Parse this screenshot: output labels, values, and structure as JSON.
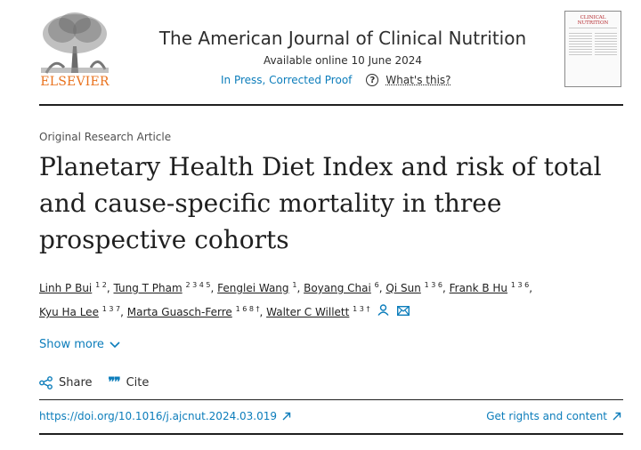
{
  "header": {
    "publisher": "ELSEVIER",
    "journal_title": "The American Journal of Clinical Nutrition",
    "available_online": "Available online 10 June 2024",
    "in_press": "In Press, Corrected Proof",
    "whats_this": "What's this?",
    "cover_title": "CLINICAL NUTRITION"
  },
  "article": {
    "type": "Original Research Article",
    "title": "Planetary Health Diet Index and risk of total and cause-specific mortality in three prospective cohorts"
  },
  "authors": [
    {
      "name": "Linh P Bui",
      "sup": "1 2"
    },
    {
      "name": "Tung T Pham",
      "sup": "2 3 4 5"
    },
    {
      "name": "Fenglei Wang",
      "sup": "1"
    },
    {
      "name": "Boyang Chai",
      "sup": "6"
    },
    {
      "name": "Qi Sun",
      "sup": "1 3 6"
    },
    {
      "name": "Frank B Hu",
      "sup": "1 3 6"
    },
    {
      "name": "Kyu Ha Lee",
      "sup": "1 3 7"
    },
    {
      "name": "Marta Guasch-Ferre",
      "sup": "1 6 8 †"
    },
    {
      "name": "Walter C Willett",
      "sup": "1 3 †"
    }
  ],
  "actions": {
    "show_more": "Show more",
    "share": "Share",
    "cite": "Cite"
  },
  "footer": {
    "doi": "https://doi.org/10.1016/j.ajcnut.2024.03.019",
    "rights": "Get rights and content"
  },
  "colors": {
    "link": "#0c7dbb",
    "elsevier_orange": "#e9711c",
    "text": "#1f1f1f"
  }
}
